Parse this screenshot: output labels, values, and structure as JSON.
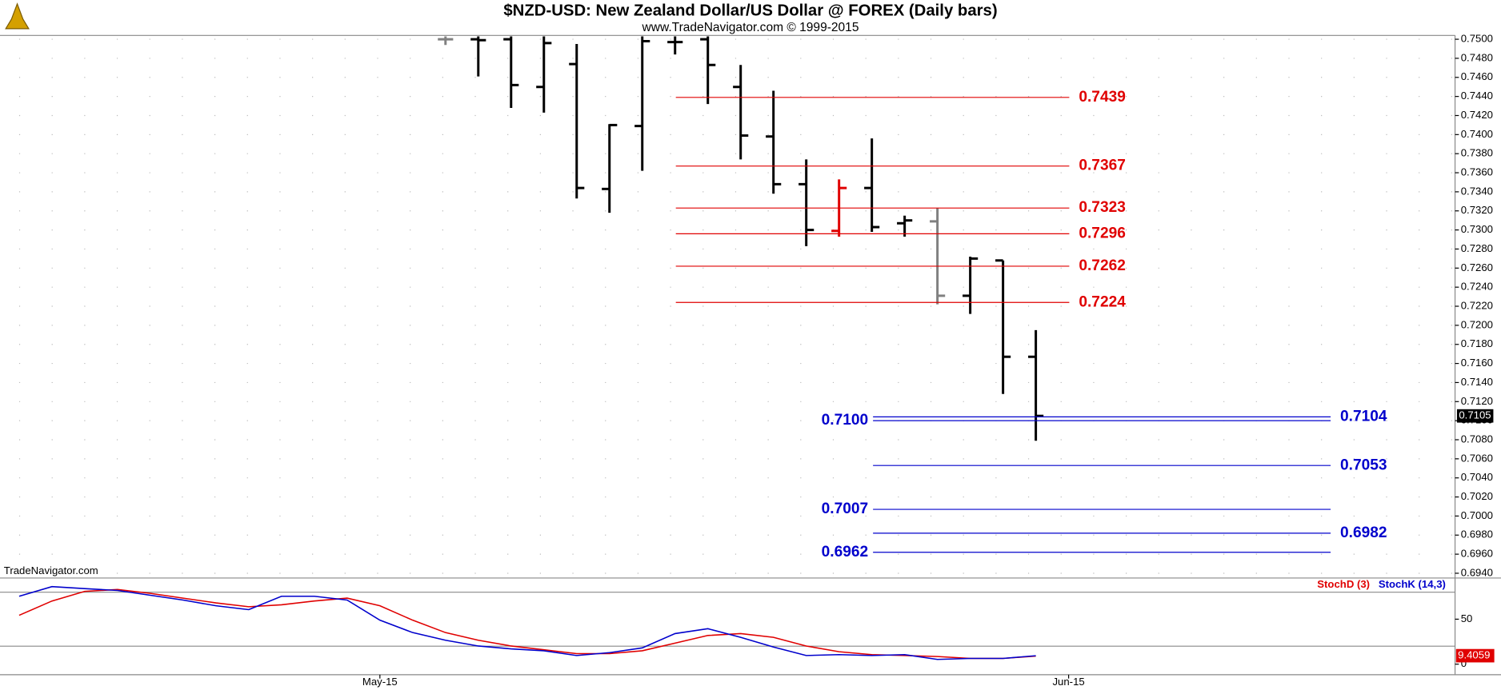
{
  "title": "$NZD-USD:  New Zealand Dollar/US Dollar @ FOREX  (Daily bars)",
  "subtitle": "www.TradeNavigator.com © 1999-2015",
  "watermark": "TradeNavigator.com",
  "x_labels": [
    "May-15",
    "Jun-15"
  ],
  "chart_data": [
    {
      "type": "ohlc",
      "open": [
        0.75,
        0.75,
        0.75,
        0.745,
        0.7474,
        0.7343,
        0.7409,
        0.7497,
        0.75,
        0.745,
        0.7398,
        0.7348,
        0.7299,
        0.7344,
        0.7307,
        0.7309,
        0.7231,
        0.7268,
        0.7167
      ],
      "high": [
        0.7505,
        0.751,
        0.7505,
        0.7505,
        0.7495,
        0.7411,
        0.751,
        0.7505,
        0.7505,
        0.7473,
        0.7446,
        0.7374,
        0.7353,
        0.7396,
        0.7315,
        0.7323,
        0.7272,
        0.7268,
        0.7195
      ],
      "low": [
        0.7494,
        0.7461,
        0.7428,
        0.7423,
        0.7333,
        0.7318,
        0.7362,
        0.7484,
        0.7432,
        0.7374,
        0.7338,
        0.7283,
        0.7293,
        0.7298,
        0.7293,
        0.7222,
        0.7212,
        0.7128,
        0.7079
      ],
      "close": [
        0.75,
        0.7499,
        0.7452,
        0.7496,
        0.7344,
        0.741,
        0.7498,
        0.7497,
        0.7473,
        0.7399,
        0.7348,
        0.73,
        0.7344,
        0.7303,
        0.731,
        0.7231,
        0.727,
        0.7167,
        0.7105
      ],
      "colors": [
        "#808080",
        "#000000",
        "#000000",
        "#000000",
        "#000000",
        "#000000",
        "#000000",
        "#000000",
        "#000000",
        "#000000",
        "#000000",
        "#000000",
        "#e00000",
        "#000000",
        "#000000",
        "#808080",
        "#000000",
        "#000000",
        "#000000"
      ],
      "levels": [
        {
          "value": 0.7439,
          "label": "0.7439",
          "color": "#e00000",
          "label_side": "right",
          "group": "red"
        },
        {
          "value": 0.7367,
          "label": "0.7367",
          "color": "#e00000",
          "label_side": "right",
          "group": "red"
        },
        {
          "value": 0.7323,
          "label": "0.7323",
          "color": "#e00000",
          "label_side": "right",
          "group": "red"
        },
        {
          "value": 0.7296,
          "label": "0.7296",
          "color": "#e00000",
          "label_side": "right",
          "group": "red"
        },
        {
          "value": 0.7262,
          "label": "0.7262",
          "color": "#e00000",
          "label_side": "right",
          "group": "red"
        },
        {
          "value": 0.7224,
          "label": "0.7224",
          "color": "#e00000",
          "label_side": "right",
          "group": "red"
        },
        {
          "value": 0.7104,
          "label": "0.7104",
          "color": "#0000cc",
          "label_side": "right",
          "group": "blue"
        },
        {
          "value": 0.71,
          "label": "0.7100",
          "color": "#0000cc",
          "label_side": "left",
          "group": "blue"
        },
        {
          "value": 0.7053,
          "label": "0.7053",
          "color": "#0000cc",
          "label_side": "right",
          "group": "blue"
        },
        {
          "value": 0.7007,
          "label": "0.7007",
          "color": "#0000cc",
          "label_side": "left",
          "group": "blue"
        },
        {
          "value": 0.6982,
          "label": "0.6982",
          "color": "#0000cc",
          "label_side": "right",
          "group": "blue"
        },
        {
          "value": 0.6962,
          "label": "0.6962",
          "color": "#0000cc",
          "label_side": "left",
          "group": "blue"
        }
      ],
      "ylim": [
        0.694,
        0.75
      ],
      "yticks": [
        {
          "value": 0.75,
          "label": "0.7500"
        },
        {
          "value": 0.748,
          "label": "0.7480"
        },
        {
          "value": 0.746,
          "label": "0.7460"
        },
        {
          "value": 0.744,
          "label": "0.7440"
        },
        {
          "value": 0.742,
          "label": "0.7420"
        },
        {
          "value": 0.74,
          "label": "0.7400"
        },
        {
          "value": 0.738,
          "label": "0.7380"
        },
        {
          "value": 0.736,
          "label": "0.7360"
        },
        {
          "value": 0.734,
          "label": "0.7340"
        },
        {
          "value": 0.732,
          "label": "0.7320"
        },
        {
          "value": 0.73,
          "label": "0.7300"
        },
        {
          "value": 0.728,
          "label": "0.7280"
        },
        {
          "value": 0.726,
          "label": "0.7260"
        },
        {
          "value": 0.724,
          "label": "0.7240"
        },
        {
          "value": 0.722,
          "label": "0.7220"
        },
        {
          "value": 0.72,
          "label": "0.7200"
        },
        {
          "value": 0.718,
          "label": "0.7180"
        },
        {
          "value": 0.716,
          "label": "0.7160"
        },
        {
          "value": 0.714,
          "label": "0.7140"
        },
        {
          "value": 0.712,
          "label": "0.7120"
        },
        {
          "value": 0.71,
          "label": "0.7100"
        },
        {
          "value": 0.708,
          "label": "0.7080"
        },
        {
          "value": 0.706,
          "label": "0.7060"
        },
        {
          "value": 0.704,
          "label": "0.7040"
        },
        {
          "value": 0.702,
          "label": "0.7020"
        },
        {
          "value": 0.7,
          "label": "0.7000"
        },
        {
          "value": 0.698,
          "label": "0.6980"
        },
        {
          "value": 0.696,
          "label": "0.6960"
        },
        {
          "value": 0.694,
          "label": "0.6940"
        }
      ],
      "grid": true
    },
    {
      "type": "line",
      "series": [
        {
          "name": "StochD (3)",
          "color": "#e00000",
          "values": [
            54.3,
            70.2,
            80.9,
            83.0,
            78.7,
            73.4,
            68.1,
            63.8,
            66.0,
            70.2,
            73.4,
            64.9,
            48.9,
            35.1,
            26.6,
            20.2,
            16.0,
            11.7,
            11.7,
            14.9,
            23.4,
            31.9,
            34.0,
            29.8,
            20.2,
            13.8,
            10.6,
            9.6,
            8.5,
            6.4,
            6.4,
            9.0
          ]
        },
        {
          "name": "StochK (14,3)",
          "color": "#0000cc",
          "values": [
            75.5,
            86.2,
            84.0,
            81.9,
            76.6,
            71.3,
            64.9,
            60.6,
            75.5,
            75.5,
            71.3,
            48.9,
            35.1,
            26.6,
            20.2,
            17.0,
            14.9,
            9.6,
            12.8,
            18.1,
            34.0,
            39.4,
            29.8,
            19.1,
            9.6,
            10.6,
            9.6,
            10.6,
            5.3,
            6.4,
            6.4,
            9.4059
          ],
          "value_labels": {
            "31": "9.4059"
          }
        }
      ],
      "ylim": [
        0,
        100
      ],
      "yticks": [
        50,
        0
      ],
      "levels": [
        80,
        20
      ]
    }
  ]
}
